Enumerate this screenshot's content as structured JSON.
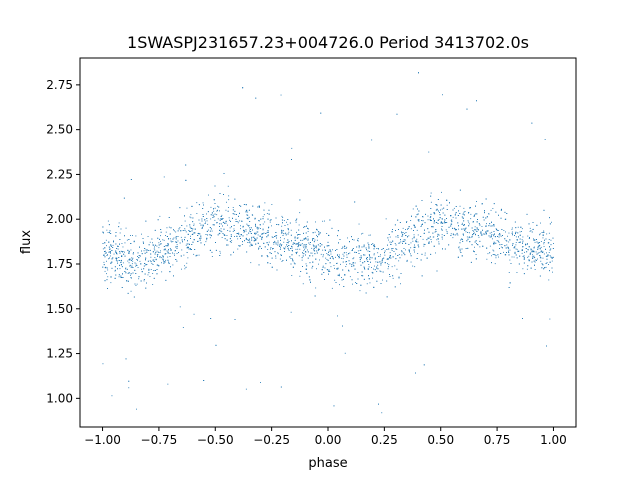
{
  "chart_data": {
    "type": "scatter",
    "title": "1SWASPJ231657.23+004726.0 Period 3413702.0s",
    "xlabel": "phase",
    "ylabel": "flux",
    "xlim": [
      -1.1,
      1.1
    ],
    "ylim": [
      0.84,
      2.9
    ],
    "x_ticks": [
      -1.0,
      -0.75,
      -0.5,
      -0.25,
      0.0,
      0.25,
      0.5,
      0.75,
      1.0
    ],
    "x_tick_labels": [
      "−1.00",
      "−0.75",
      "−0.50",
      "−0.25",
      "0.00",
      "0.25",
      "0.50",
      "0.75",
      "1.00"
    ],
    "y_ticks": [
      1.0,
      1.25,
      1.5,
      1.75,
      2.0,
      2.25,
      2.5,
      2.75
    ],
    "y_tick_labels": [
      "1.00",
      "1.25",
      "1.50",
      "1.75",
      "2.00",
      "2.25",
      "2.50",
      "2.75"
    ],
    "grid": false,
    "marker_color": "#1f77b4",
    "series": [
      {
        "x": [
          -1.0,
          -0.95,
          -0.9,
          -0.85,
          -0.8,
          -0.75,
          -0.7,
          -0.65,
          -0.6,
          -0.55,
          -0.5,
          -0.45,
          -0.4,
          -0.35,
          -0.3,
          -0.25,
          -0.2,
          -0.15,
          -0.1,
          -0.05,
          0.0,
          0.05,
          0.1,
          0.15,
          0.2,
          0.25,
          0.3,
          0.35,
          0.4,
          0.45,
          0.5,
          0.55,
          0.6,
          0.65,
          0.7,
          0.75,
          0.8,
          0.85,
          0.9,
          0.95,
          1.0
        ],
        "y": [
          1.82,
          1.8,
          1.78,
          1.76,
          1.77,
          1.8,
          1.84,
          1.88,
          1.93,
          1.97,
          1.99,
          1.98,
          1.96,
          1.94,
          1.92,
          1.9,
          1.88,
          1.86,
          1.84,
          1.82,
          1.8,
          1.78,
          1.77,
          1.76,
          1.78,
          1.8,
          1.84,
          1.88,
          1.93,
          1.97,
          1.99,
          1.98,
          1.96,
          1.94,
          1.92,
          1.9,
          1.88,
          1.86,
          1.84,
          1.83,
          1.82
        ]
      }
    ]
  }
}
